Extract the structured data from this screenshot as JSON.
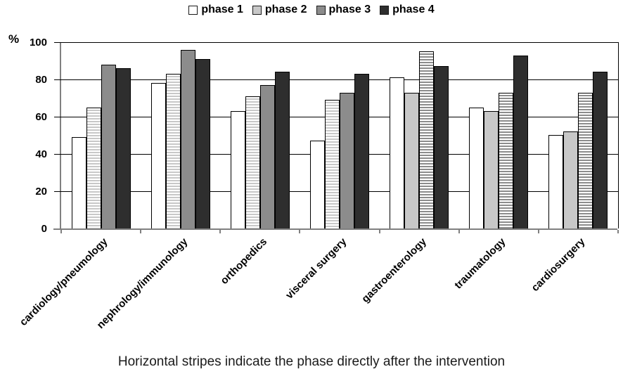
{
  "legend": {
    "items": [
      {
        "label": "phase 1",
        "color": "#ffffff"
      },
      {
        "label": "phase 2",
        "color": "#c8c8c8"
      },
      {
        "label": "phase 3",
        "color": "#8c8c8c"
      },
      {
        "label": "phase 4",
        "color": "#2e2e2e"
      }
    ]
  },
  "chart_data": {
    "type": "bar",
    "title": "",
    "ylabel": "%",
    "xlabel": "",
    "categories": [
      "cardiology/pneumology",
      "nephrology/immunology",
      "orthopedics",
      "visceral surgery",
      "gastroenterology",
      "traumatology",
      "cardiosurgery"
    ],
    "series": [
      {
        "name": "phase 1",
        "color": "#ffffff",
        "values": [
          49,
          78,
          63,
          47,
          81,
          65,
          50
        ]
      },
      {
        "name": "phase 2",
        "color": "#c8c8c8",
        "values": [
          65,
          83,
          71,
          69,
          73,
          63,
          52
        ]
      },
      {
        "name": "phase 3",
        "color": "#8c8c8c",
        "values": [
          88,
          96,
          77,
          73,
          95,
          73,
          73
        ]
      },
      {
        "name": "phase 4",
        "color": "#2e2e2e",
        "values": [
          86,
          91,
          84,
          83,
          87,
          93,
          84
        ]
      }
    ],
    "striped_series_index_by_group": [
      1,
      1,
      1,
      1,
      2,
      2,
      2
    ],
    "stripe_meaning": "horizontal stripes mark the phase directly after the intervention",
    "yticks": [
      0,
      20,
      40,
      60,
      80,
      100
    ],
    "ylim": [
      0,
      100
    ],
    "grid": "horizontal",
    "legend_position": "top"
  },
  "caption": "Horizontal stripes indicate the phase directly after the intervention"
}
